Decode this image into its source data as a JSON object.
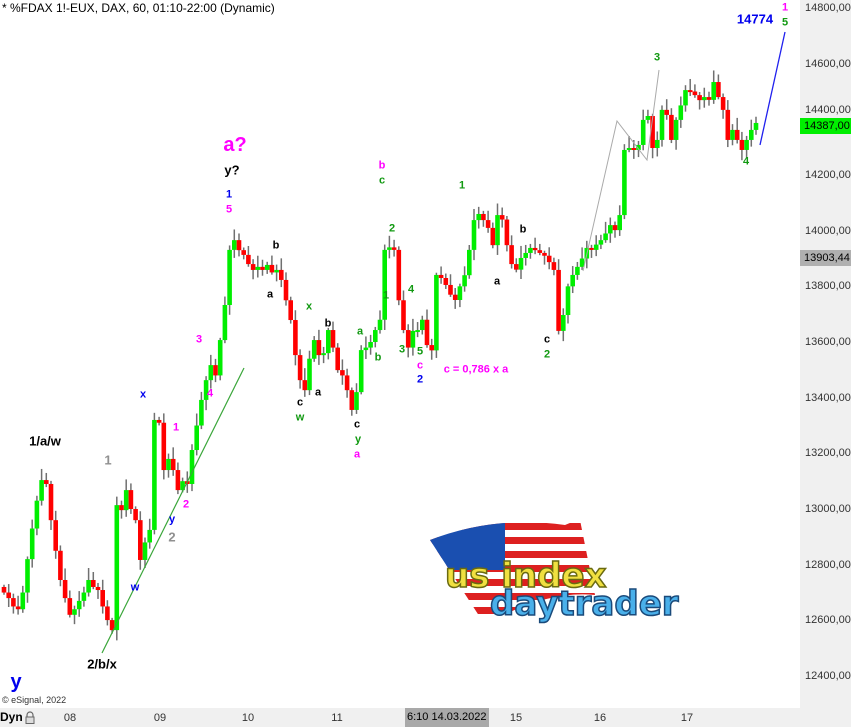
{
  "header": {
    "title": "* %FDAX 1!-EUX, DAX, 60, 01:10-22:00 (Dynamic)",
    "copyright": "© eSignal, 2022"
  },
  "colors": {
    "up": "#00ee00",
    "down": "#ff0000",
    "wick": "#707070",
    "trendline": "#3aa63a",
    "projection": "#2020ee",
    "path": "#aaaaaa",
    "magenta": "#ff00ff",
    "green": "#119911",
    "blue": "#0000ee",
    "gray": "#909090"
  },
  "price_labels": {
    "last": "14387,00",
    "marker": "13903,44",
    "target": "14774"
  },
  "xaxis": {
    "mode": "Dyn",
    "lock_icon": "lock-icon",
    "highlight": "6:10 14.03.2022"
  },
  "annotations": {
    "a_q": "a?",
    "y_q": "y?",
    "t1": "1",
    "t5": "5",
    "b1": "b",
    "a1": "a",
    "x1": "x",
    "b2": "b",
    "a2": "a",
    "c1": "c",
    "w1": "w",
    "ga": "a",
    "gb": "b",
    "c2": "c",
    "y2": "y",
    "ma": "a",
    "mb": "b",
    "gc": "c",
    "g2": "2",
    "g1": "1",
    "g4": "4",
    "g3": "3",
    "g5": "5",
    "mc": "c",
    "b_2": "2",
    "ratio": "c = 0,786 x a",
    "g1b": "1",
    "b3": "b",
    "a3": "a",
    "c3": "c",
    "g2b": "2",
    "g3b": "3",
    "g4b": "4",
    "m1": "1",
    "g5b": "5",
    "law": "1/a/w",
    "gr1": "1",
    "bx": "x",
    "m1b": "1",
    "m3": "3",
    "m4": "4",
    "m2": "2",
    "by": "y",
    "gr2": "2",
    "bw": "w",
    "bbx": "2/b/x",
    "by2": "y"
  },
  "logo": {
    "line1": "us index",
    "line2": "daytrader"
  },
  "chart_data": {
    "type": "candlestick",
    "title": "* %FDAX 1!-EUX, DAX, 60, 01:10-22:00 (Dynamic)",
    "ylim": [
      12400,
      14800
    ],
    "yticks": [
      "14800,00",
      "14600,00",
      "14400,00",
      "14200,00",
      "14000,00",
      "13800,00",
      "13600,00",
      "13400,00",
      "13200,00",
      "13000,00",
      "12800,00",
      "12600,00",
      "12400,00"
    ],
    "ytick_values": [
      14800,
      14600,
      14400,
      14200,
      14000,
      13800,
      13600,
      13400,
      13200,
      13000,
      12800,
      12600,
      12400
    ],
    "xticks": [
      "08",
      "09",
      "10",
      "11",
      "15",
      "16",
      "17"
    ],
    "last_price": 14387,
    "projection_target": 14774,
    "closes": [
      12700,
      12680,
      12650,
      12640,
      12700,
      12820,
      12930,
      13030,
      13104,
      13090,
      12960,
      12850,
      12745,
      12680,
      12620,
      12640,
      12670,
      12700,
      12745,
      12720,
      12709,
      12650,
      12601,
      12565,
      13014,
      12996,
      13068,
      13000,
      12960,
      12817,
      12880,
      12925,
      13320,
      13310,
      13140,
      13180,
      13140,
      13068,
      13100,
      13090,
      13212,
      13300,
      13392,
      13463,
      13517,
      13480,
      13607,
      13733,
      13931,
      13966,
      13930,
      13913,
      13880,
      13859,
      13870,
      13859,
      13877,
      13850,
      13859,
      13823,
      13750,
      13679,
      13553,
      13463,
      13427,
      13540,
      13607,
      13553,
      13560,
      13643,
      13580,
      13499,
      13480,
      13427,
      13356,
      13420,
      13571,
      13580,
      13600,
      13643,
      13680,
      13931,
      13940,
      13931,
      13750,
      13643,
      13580,
      13640,
      13643,
      13680,
      13589,
      13570,
      13841,
      13830,
      13805,
      13770,
      13751,
      13800,
      13840,
      13931,
      14038,
      14060,
      14038,
      14010,
      13948,
      14056,
      14040,
      13948,
      13880,
      13860,
      13902,
      13920,
      13938,
      13930,
      13920,
      13910,
      13887,
      13859,
      13640,
      13697,
      13800,
      13841,
      13870,
      13900,
      13938,
      13931,
      13950,
      13966,
      13990,
      14020,
      14002,
      14056,
      14290,
      14297,
      14290,
      14308,
      14398,
      14412,
      14297,
      14326,
      14434,
      14416,
      14326,
      14398,
      14450,
      14505,
      14500,
      14487,
      14469,
      14480,
      14470,
      14534,
      14480,
      14434,
      14326,
      14362,
      14326,
      14290,
      14326,
      14362,
      14387
    ]
  }
}
